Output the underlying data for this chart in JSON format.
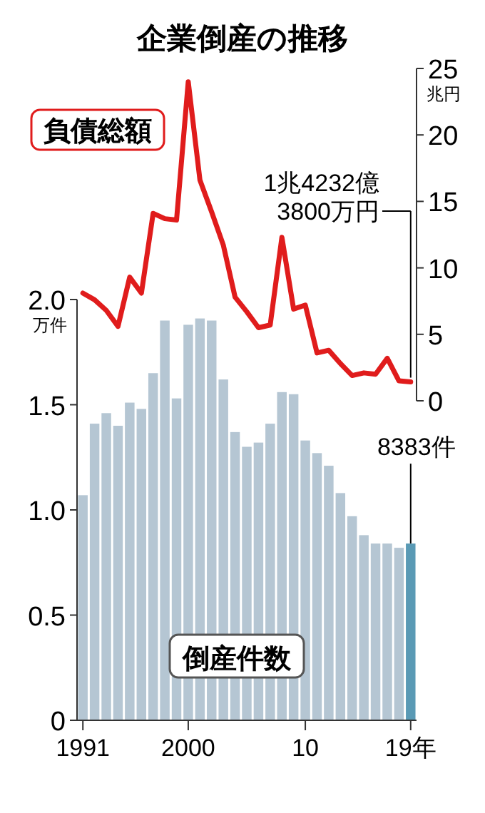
{
  "chart_data": [
    {
      "type": "line",
      "title": "企業倒産の推移",
      "ylabel": "兆円",
      "categories": [
        null,
        null,
        null,
        null,
        null,
        null,
        null,
        null,
        null,
        null,
        null,
        null,
        null,
        null,
        null,
        null,
        null,
        null,
        null,
        null,
        null,
        null,
        null,
        null,
        null,
        null,
        null,
        null,
        null
      ],
      "tick_labels": "y",
      "ylim": [
        0,
        25
      ],
      "yticks": [
        {
          "value": 0,
          "label": "0"
        },
        {
          "value": 5,
          "label": "5"
        },
        {
          "value": 10,
          "label": "10"
        },
        {
          "value": 15,
          "label": "15"
        },
        {
          "value": 20,
          "label": "20"
        },
        {
          "value": 25,
          "label": "25"
        }
      ],
      "grid": false,
      "series": [
        {
          "name": "負債総額",
          "color": "#e01c1c",
          "values": [
            8.1,
            7.6,
            6.8,
            5.6,
            9.3,
            8.1,
            14.1,
            13.7,
            13.6,
            24,
            16.6,
            14.2,
            11.7,
            7.8,
            6.7,
            5.5,
            5.7,
            12.3,
            6.9,
            7.2,
            3.6,
            3.8,
            2.8,
            1.9,
            2.1,
            2,
            3.2,
            1.5,
            1.42
          ],
          "value_labels": [
            null,
            null,
            null,
            null,
            null,
            null,
            null,
            null,
            null,
            null,
            null,
            null,
            null,
            null,
            null,
            null,
            null,
            null,
            null,
            null,
            null,
            null,
            null,
            null,
            null,
            null,
            null,
            null,
            "1兆4232億\n3800万円"
          ]
        }
      ]
    },
    {
      "type": "bar",
      "ylabel": "万件",
      "categories": [
        "1991",
        null,
        null,
        null,
        null,
        null,
        null,
        null,
        null,
        "2000",
        null,
        null,
        null,
        null,
        null,
        null,
        null,
        null,
        null,
        "10",
        null,
        null,
        null,
        null,
        null,
        null,
        null,
        null,
        "19年"
      ],
      "ylim": [
        0,
        2
      ],
      "yticks": [
        {
          "value": 0,
          "label": "0"
        },
        {
          "value": 0.5,
          "label": "0.5"
        },
        {
          "value": 1,
          "label": "1.0"
        },
        {
          "value": 1.5,
          "label": "1.5"
        },
        {
          "value": 2,
          "label": "2.0"
        }
      ],
      "grid": false,
      "annotations": [
        {
          "text": "8383件",
          "x": "19年",
          "y": 0.84
        }
      ],
      "series": [
        {
          "name": "倒産件数",
          "colors": [
            "#b5c6d3",
            "#b5c6d3",
            "#b5c6d3",
            "#b5c6d3",
            "#b5c6d3",
            "#b5c6d3",
            "#b5c6d3",
            "#b5c6d3",
            "#b5c6d3",
            "#b5c6d3",
            "#b5c6d3",
            "#b5c6d3",
            "#b5c6d3",
            "#b5c6d3",
            "#b5c6d3",
            "#b5c6d3",
            "#b5c6d3",
            "#b5c6d3",
            "#b5c6d3",
            "#b5c6d3",
            "#b5c6d3",
            "#b5c6d3",
            "#b5c6d3",
            "#b5c6d3",
            "#b5c6d3",
            "#b5c6d3",
            "#b5c6d3",
            "#b5c6d3",
            "#5a9ab5"
          ],
          "values": [
            1.07,
            1.41,
            1.46,
            1.4,
            1.51,
            1.48,
            1.65,
            1.9,
            1.53,
            1.88,
            1.91,
            1.9,
            1.62,
            1.37,
            1.3,
            1.32,
            1.41,
            1.56,
            1.55,
            1.33,
            1.27,
            1.21,
            1.08,
            0.97,
            0.88,
            0.84,
            0.84,
            0.82,
            0.84
          ]
        }
      ]
    }
  ]
}
